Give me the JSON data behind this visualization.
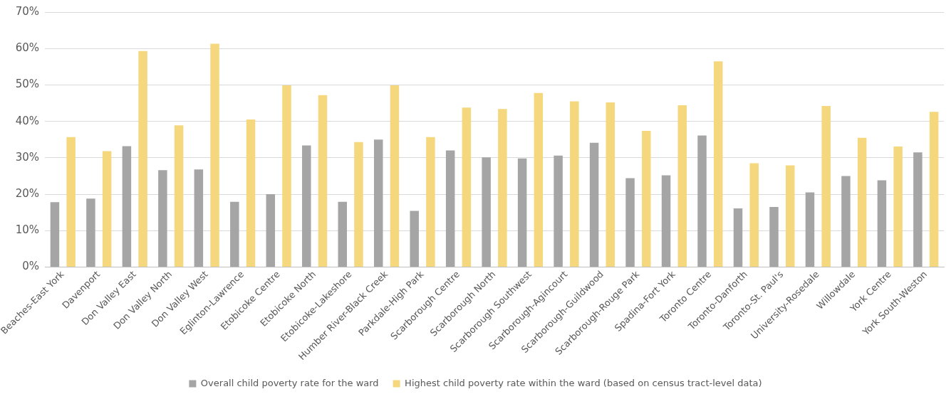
{
  "chart_data": {
    "type": "bar",
    "categories": [
      "Beaches-East York",
      "Davenport",
      "Don Valley East",
      "Don Valley North",
      "Don Valley West",
      "Eglinton-Lawrence",
      "Etobicoke Centre",
      "Etobicoke North",
      "Etobicoke-Lakeshore",
      "Humber River-Black Creek",
      "Parkdale-High Park",
      "Scarborough Centre",
      "Scarborough North",
      "Scarborough Southwest",
      "Scarborough-Agincourt",
      "Scarborough-Guildwood",
      "Scarborough-Rouge Park",
      "Spadina-Fort York",
      "Toronto Centre",
      "Toronto-Danforth",
      "Toronto-St. Paul's",
      "University-Rosedale",
      "Willowdale",
      "York Centre",
      "York South-Weston"
    ],
    "series": [
      {
        "name": "Overall child poverty rate for the ward",
        "color": "#a5a5a5",
        "values": [
          17.8,
          18.8,
          33.2,
          26.6,
          26.8,
          17.9,
          20.0,
          33.4,
          17.9,
          35.0,
          15.4,
          32.0,
          30.1,
          29.8,
          30.6,
          34.1,
          24.4,
          25.2,
          36.1,
          16.1,
          16.5,
          20.5,
          25.0,
          23.8,
          31.5
        ]
      },
      {
        "name": "Highest child poverty rate within the ward (based on census tract-level data)",
        "color": "#f5d77e",
        "values": [
          35.7,
          31.8,
          59.3,
          38.9,
          61.3,
          40.5,
          49.9,
          47.2,
          34.3,
          49.9,
          35.7,
          43.8,
          43.4,
          47.8,
          45.5,
          45.2,
          37.4,
          44.4,
          56.5,
          28.5,
          27.9,
          44.2,
          35.5,
          33.1,
          42.6
        ]
      }
    ],
    "ylim": [
      0,
      70
    ],
    "yticks": [
      {
        "value": 0,
        "label": "0%"
      },
      {
        "value": 10,
        "label": "10%"
      },
      {
        "value": 20,
        "label": "20%"
      },
      {
        "value": 30,
        "label": "30%"
      },
      {
        "value": 40,
        "label": "40%"
      },
      {
        "value": 50,
        "label": "50%"
      },
      {
        "value": 60,
        "label": "60%"
      },
      {
        "value": 70,
        "label": "70%"
      }
    ],
    "grid": "y",
    "legend": "bottom"
  }
}
